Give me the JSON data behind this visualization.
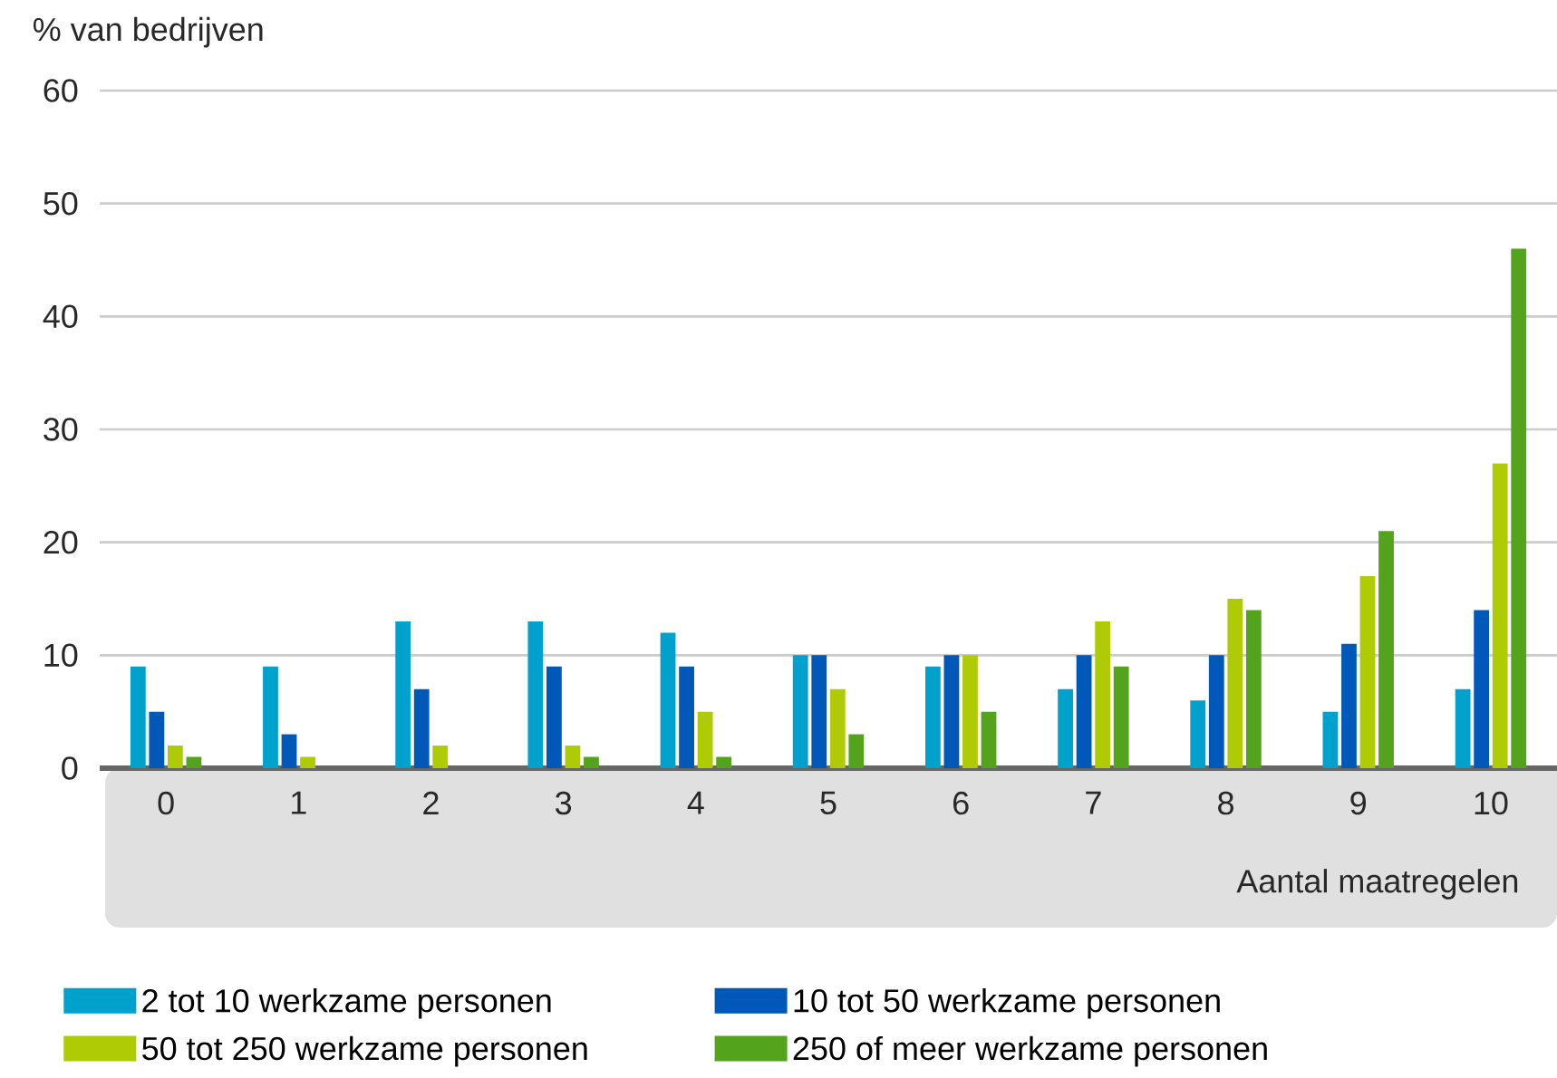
{
  "chart_data": {
    "type": "bar",
    "ylabel": "% van bedrijven",
    "xlabel": "Aantal maatregelen",
    "categories": [
      "0",
      "1",
      "2",
      "3",
      "4",
      "5",
      "6",
      "7",
      "8",
      "9",
      "10"
    ],
    "series": [
      {
        "name": "2 tot 10 werkzame personen",
        "color": "#00a1cd",
        "values": [
          9,
          9,
          13,
          13,
          12,
          10,
          9,
          7,
          6,
          5,
          7
        ]
      },
      {
        "name": "10 tot 50 werkzame personen",
        "color": "#0058b8",
        "values": [
          5,
          3,
          7,
          9,
          9,
          10,
          10,
          10,
          10,
          11,
          14
        ]
      },
      {
        "name": "50 tot 250 werkzame personen",
        "color": "#afcb05",
        "values": [
          2,
          1,
          2,
          2,
          5,
          7,
          10,
          13,
          15,
          17,
          27
        ]
      },
      {
        "name": "250 of meer werkzame personen",
        "color": "#53a31d",
        "values": [
          1,
          0,
          0,
          1,
          1,
          3,
          5,
          9,
          14,
          21,
          46
        ]
      }
    ],
    "ylim": [
      0,
      60
    ],
    "yticks": [
      0,
      10,
      20,
      30,
      40,
      50,
      60
    ],
    "grid": "y",
    "legend": "bottom"
  }
}
